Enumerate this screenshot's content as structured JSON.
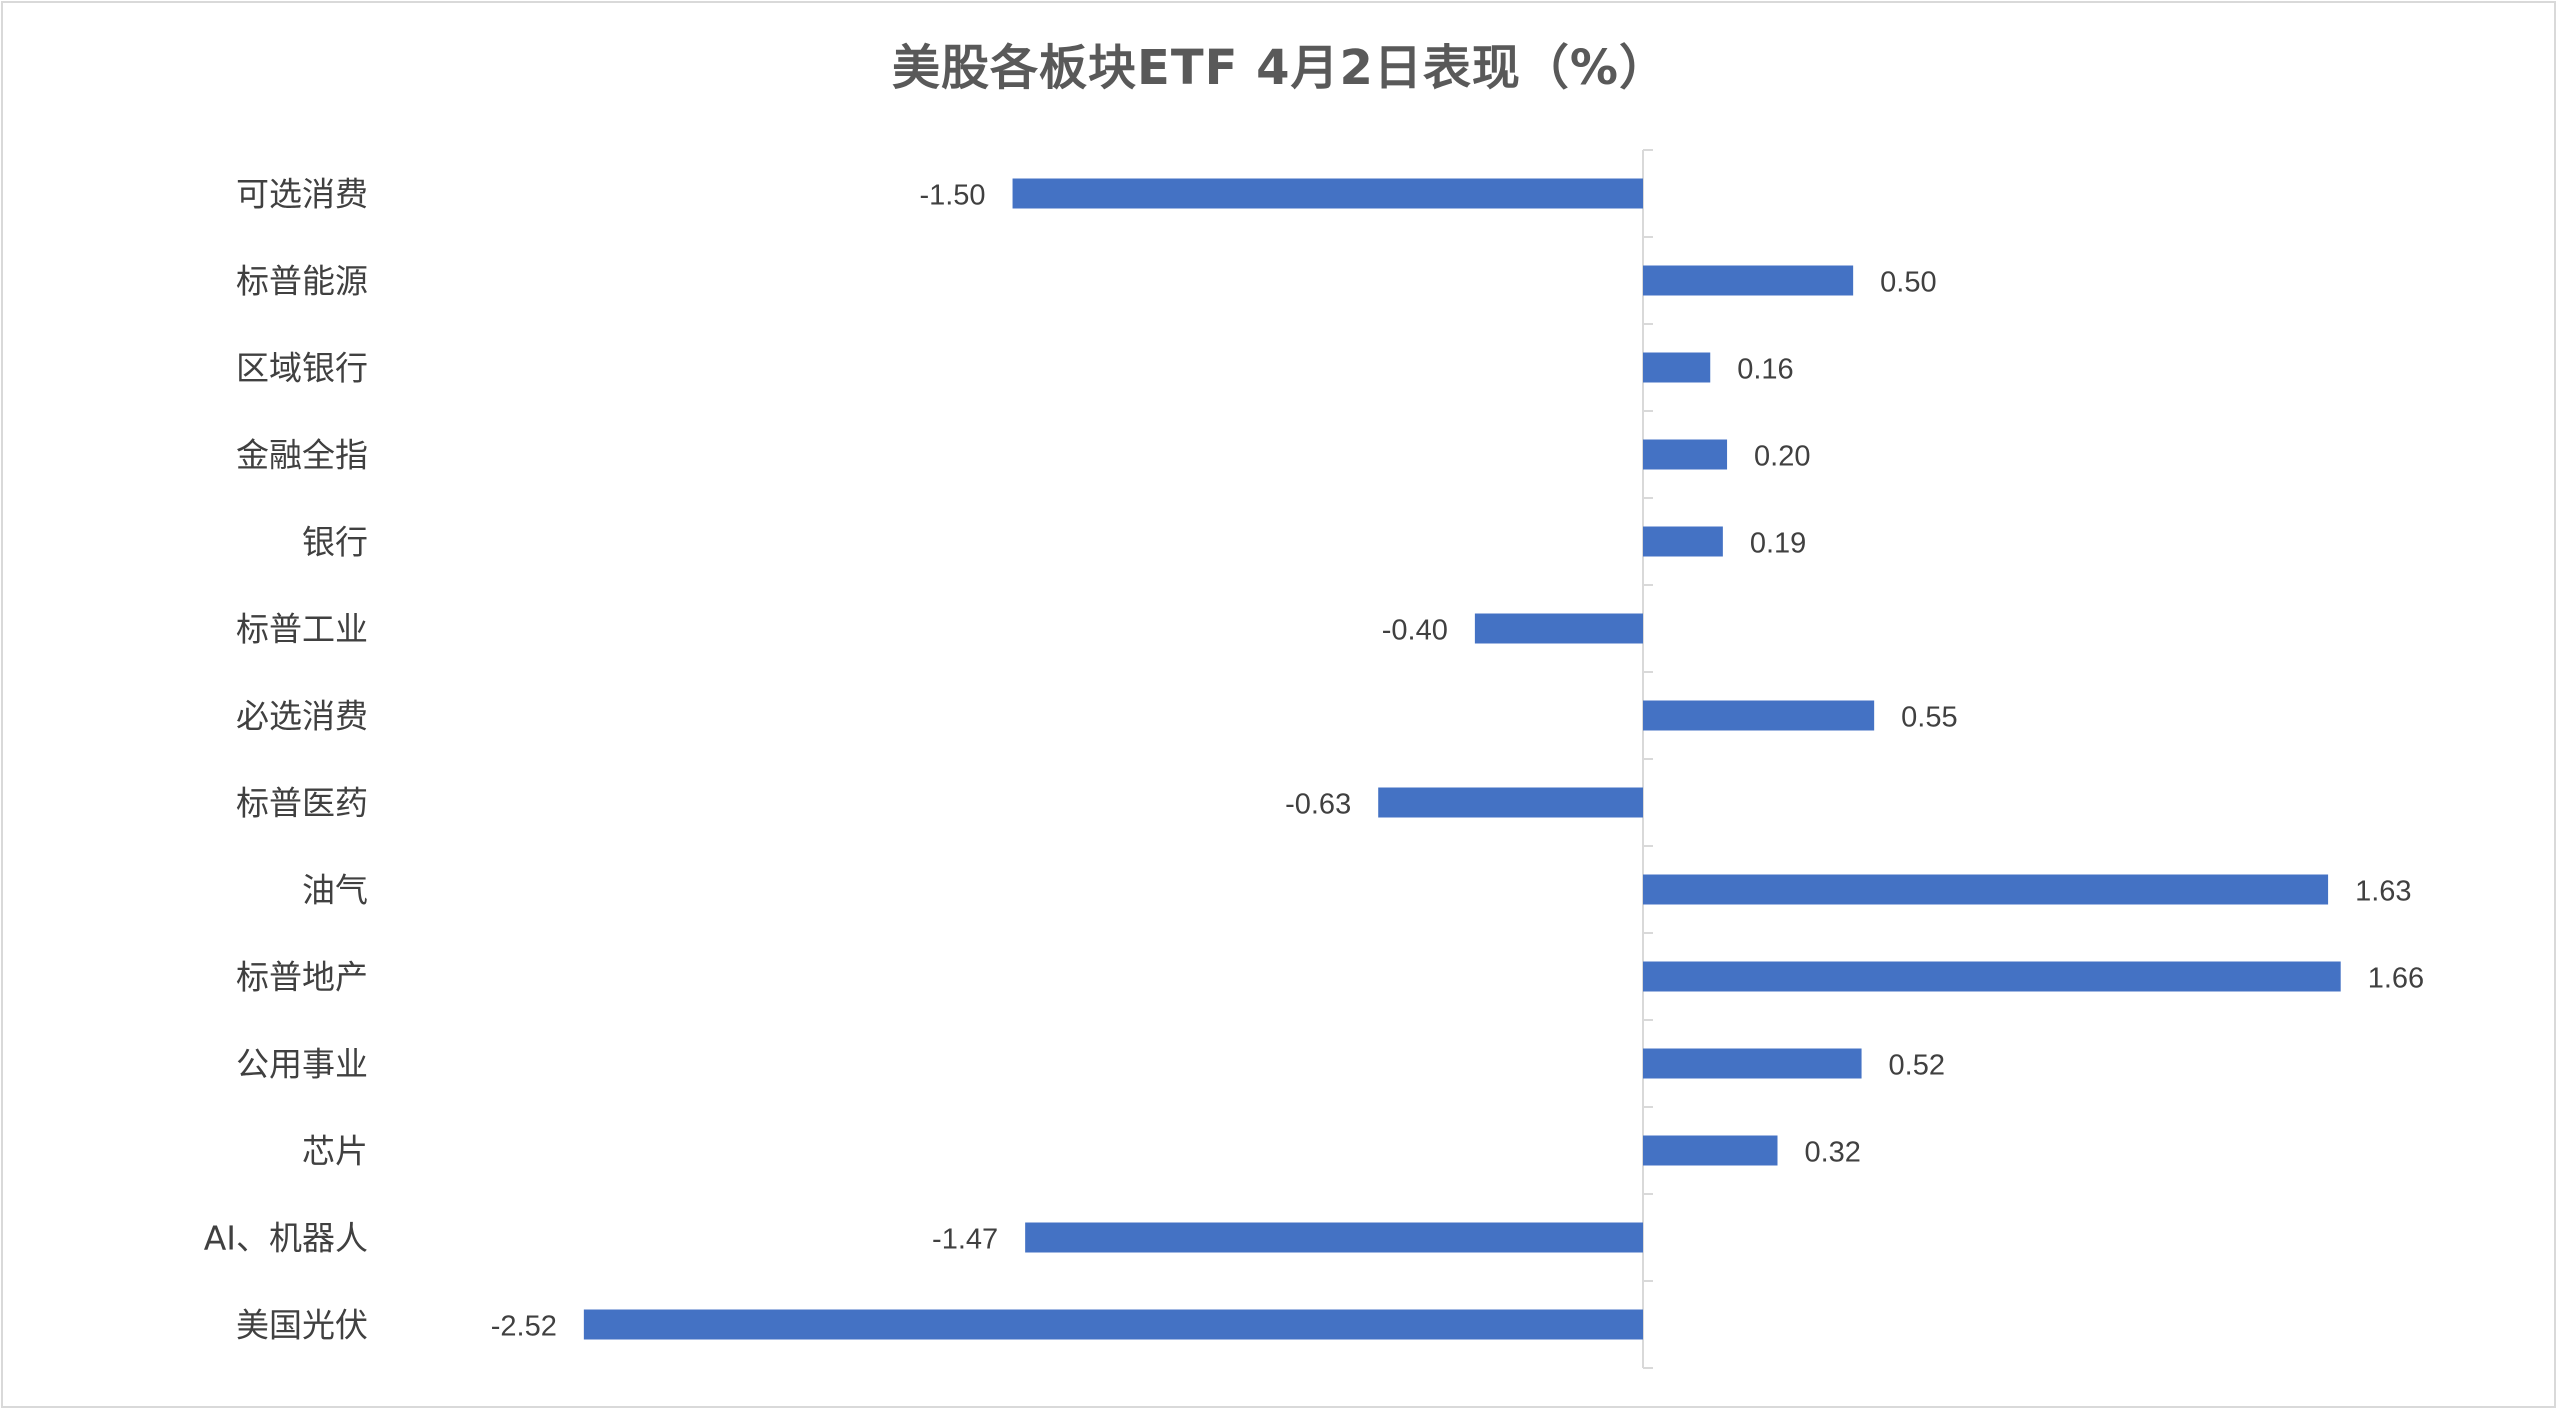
{
  "chart_data": {
    "type": "bar",
    "orientation": "horizontal",
    "title": "美股各板块ETF  4月2日表现（%）",
    "categories": [
      "可选消费",
      "标普能源",
      "区域银行",
      "金融全指",
      "银行",
      "标普工业",
      "必选消费",
      "标普医药",
      "油气",
      "标普地产",
      "公用事业",
      "芯片",
      "AI、机器人",
      "美国光伏"
    ],
    "values": [
      -1.5,
      0.5,
      0.16,
      0.2,
      0.19,
      -0.4,
      0.55,
      -0.63,
      1.63,
      1.66,
      0.52,
      0.32,
      -1.47,
      -2.52
    ],
    "value_labels": [
      "-1.50",
      "0.50",
      "0.16",
      "0.20",
      "0.19",
      "-0.40",
      "0.55",
      "-0.63",
      "1.63",
      "1.66",
      "0.52",
      "0.32",
      "-1.47",
      "-2.52"
    ],
    "xlim": [
      -2.52,
      1.66
    ],
    "bar_color": "#4472C4",
    "grid": false,
    "legend": "none"
  }
}
